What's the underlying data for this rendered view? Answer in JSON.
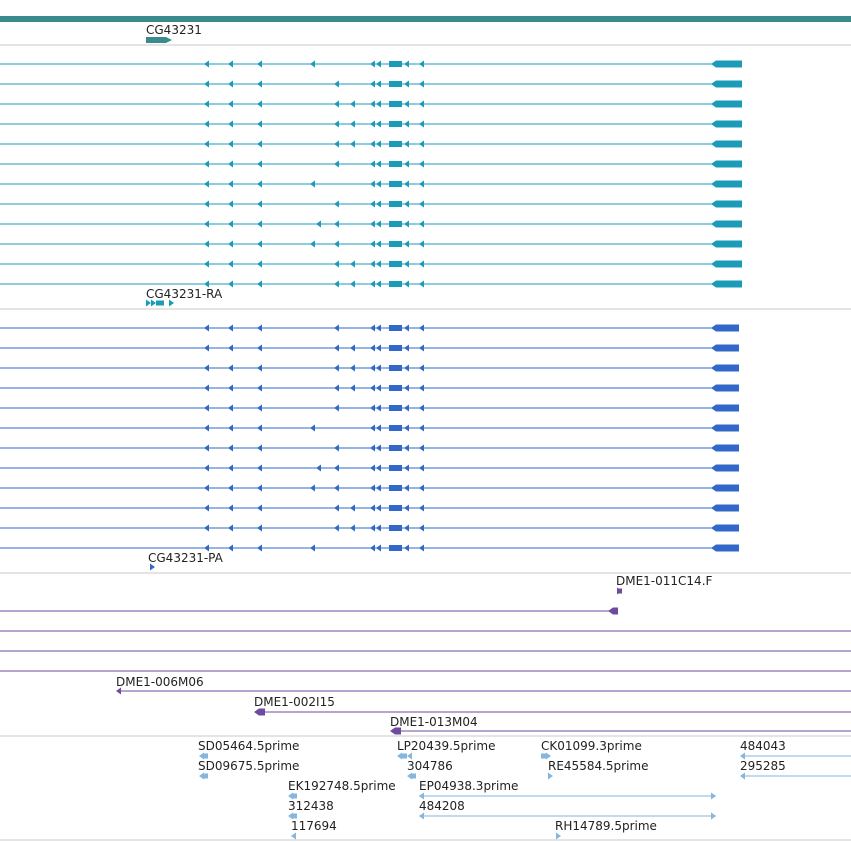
{
  "colors": {
    "gene": "#3a8c8c",
    "transcript_ra": "#1a9cb8",
    "transcript_pa": "#3268c8",
    "dme": "#6e4b9c",
    "est": "#86b6dc",
    "separator": "#c8c8c8",
    "text": "#222222"
  },
  "gene_track": {
    "label": "CG43231"
  },
  "transcripts_ra": {
    "label": "CG43231-RA",
    "count": 12
  },
  "transcripts_pa": {
    "label": "CG43231-PA",
    "count": 12
  },
  "dme_track": {
    "labels": [
      "DME1-011C14.F",
      "DME1-006M06",
      "DME1-002I15",
      "DME1-013M04"
    ]
  },
  "est_track": {
    "labels": [
      "SD05464.5prime",
      "LP20439.5prime",
      "CK01099.3prime",
      "484043",
      "SD09675.5prime",
      "304786",
      "RE45584.5prime",
      "295285",
      "EK192748.5prime",
      "EP04938.3prime",
      "312438",
      "484208",
      "117694",
      "RH14789.5prime"
    ]
  }
}
